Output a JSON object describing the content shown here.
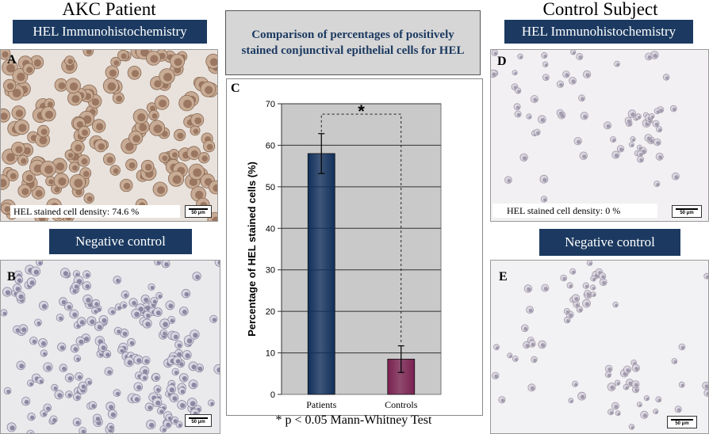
{
  "left": {
    "heading": "AKC Patient",
    "stain_label": "HEL Immunohistochemistry",
    "panel_a": {
      "letter": "A",
      "density_text": "HEL stained cell density: 74.6 %",
      "scale_text": "50 μm"
    },
    "negative_label": "Negative control",
    "panel_b": {
      "letter": "B",
      "scale_text": "50 μm"
    }
  },
  "right": {
    "heading": "Control Subject",
    "stain_label": "HEL Immunohistochemistry",
    "panel_d": {
      "letter": "D",
      "density_text": "HEL stained cell density: 0 %",
      "scale_text": "50 μm"
    },
    "negative_label": "Negative control",
    "panel_e": {
      "letter": "E",
      "scale_text": "50 μm"
    }
  },
  "chart_title": "Comparison of percentages of positively stained conjunctival epithelial cells for HEL",
  "panel_c_letter": "C",
  "footnote": "* p < 0.05 Mann-Whitney Test",
  "chart_data": {
    "type": "bar",
    "categories": [
      "Patients",
      "Controls"
    ],
    "values": [
      58,
      8.5
    ],
    "error": [
      4.8,
      3.2
    ],
    "ylabel": "Percentage of HEL stained cells (%)",
    "xlabel": "",
    "ylim": [
      0,
      70
    ],
    "yticks": [
      0,
      10,
      20,
      30,
      40,
      50,
      60,
      70
    ],
    "grid": true,
    "significance_marker": "*",
    "bar_colors": [
      "#102f5c",
      "#7a2050"
    ],
    "plot_background": "#c9c9c9"
  }
}
